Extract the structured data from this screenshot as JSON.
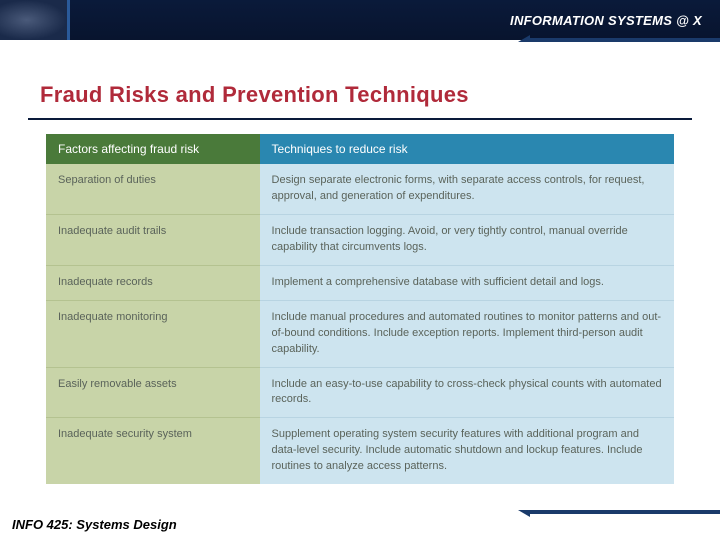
{
  "header": {
    "label": "INFORMATION SYSTEMS @ X"
  },
  "title": {
    "text": "Fraud Risks and Prevention Techniques",
    "color": "#b02a3a"
  },
  "table": {
    "columns": {
      "left": "Factors affecting fraud risk",
      "right": "Techniques to reduce risk"
    },
    "header_colors": {
      "left": "#4a7a3a",
      "right": "#2a87b0"
    },
    "body_colors": {
      "left": "#c8d4a8",
      "right": "#cde4ef"
    },
    "rows": [
      {
        "left": "Separation of duties",
        "right": "Design separate electronic forms, with separate access controls, for request, approval, and generation of expenditures."
      },
      {
        "left": "Inadequate audit trails",
        "right": "Include transaction logging.\nAvoid, or very tightly control, manual override capability that circumvents logs."
      },
      {
        "left": "Inadequate records",
        "right": "Implement a comprehensive database with sufficient detail and logs."
      },
      {
        "left": "Inadequate monitoring",
        "right": "Include manual procedures and automated routines to monitor patterns and out-of-bound conditions.\nInclude exception reports.\nImplement third-person audit capability."
      },
      {
        "left": "Easily removable assets",
        "right": "Include an easy-to-use capability to cross-check physical counts with automated records."
      },
      {
        "left": "Inadequate security system",
        "right": "Supplement operating system security features with additional program and data-level security.\nInclude automatic shutdown and lockup features.\nInclude routines to analyze access patterns."
      }
    ]
  },
  "footer": {
    "text": "INFO 425: Systems Design"
  }
}
